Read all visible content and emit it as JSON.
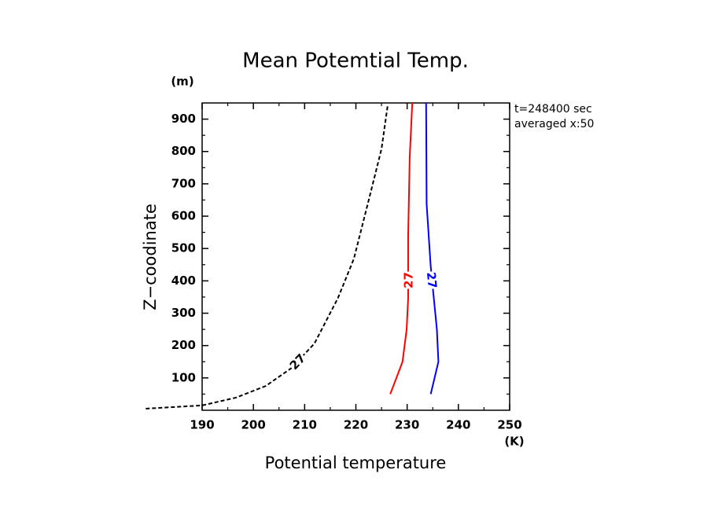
{
  "chart_data": {
    "type": "line",
    "title": "Mean Potemtial Temp.",
    "xlabel": "Potential temperature",
    "ylabel": "Z−coodinate",
    "xunit": "(K)",
    "yunit": "(m)",
    "annotations": [
      "t=248400 sec",
      "averaged  x:50"
    ],
    "xlim": [
      190,
      250
    ],
    "ylim": [
      0,
      950
    ],
    "xticks": [
      190,
      200,
      210,
      220,
      230,
      240,
      250
    ],
    "yticks": [
      100,
      200,
      300,
      400,
      500,
      600,
      700,
      800,
      900
    ],
    "xminorticks": [
      195,
      205,
      215,
      225,
      235,
      245
    ],
    "yminorticks": [
      50,
      150,
      250,
      350,
      450,
      550,
      650,
      750,
      850
    ],
    "series": [
      {
        "label": "27",
        "color": "#000000",
        "dashed": true,
        "x": [
          179,
          190,
          196.6,
          202.4,
          207.3,
          211.9,
          216.5,
          219.6,
          222.7,
          225,
          226.2
        ],
        "values": [
          5,
          15,
          39,
          75,
          129,
          206,
          347,
          468,
          662,
          808,
          942
        ]
      },
      {
        "label": "27",
        "color": "#ff0000",
        "dashed": false,
        "x": [
          226.7,
          229.1,
          229.9,
          230.2,
          230.2,
          230.5,
          231
        ],
        "values": [
          50,
          150,
          250,
          347,
          540,
          782,
          950
        ]
      },
      {
        "label": "27",
        "color": "#0000ff",
        "dashed": false,
        "x": [
          234.6,
          236.1,
          235.8,
          234.6,
          233.8,
          233.7
        ],
        "values": [
          50,
          150,
          250,
          444,
          638,
          950
        ]
      }
    ]
  }
}
